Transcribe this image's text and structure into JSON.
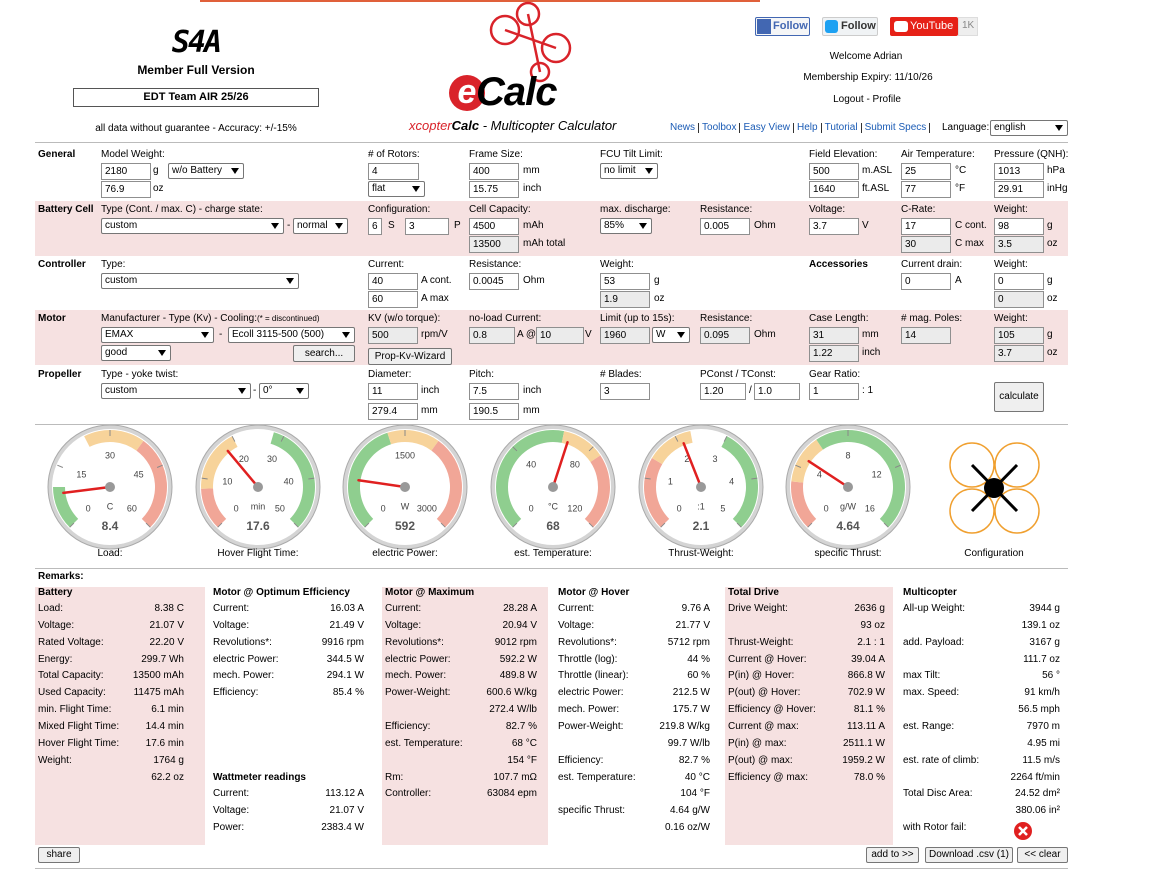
{
  "header": {
    "brand": "S4A",
    "membership": "Member Full Version",
    "team": "EDT Team AIR 25/26",
    "disclaimer": "all data without guarantee - Accuracy: +/-15%",
    "logo": [
      "e",
      "Calc"
    ],
    "subtitle": [
      "xcopter",
      "Calc",
      " - Multicopter Calculator"
    ],
    "social": [
      "Follow",
      "Follow",
      "YouTube",
      "1K"
    ],
    "welcome": "Welcome Adrian",
    "expiry": "Membership Expiry: 11/10/26",
    "account": "Logout - Profile",
    "nav": [
      "News",
      "Toolbox",
      "Easy View",
      "Help",
      "Tutorial",
      "Submit Specs"
    ],
    "language_label": "Language:",
    "language": "english"
  },
  "form": [
    {
      "title": "General",
      "labels": [
        "Model Weight:",
        "# of Rotors:",
        "Frame Size:",
        "FCU Tilt Limit:",
        "Field Elevation:",
        "Air Temperature:",
        "Pressure (QNH):"
      ],
      "inputs": [
        "2180",
        "76.9",
        "4",
        "400",
        "15.75",
        "500",
        "1640",
        "25",
        "77",
        "1013",
        "29.91"
      ],
      "readonly": [],
      "selects": [
        "w/o Battery",
        "flat",
        "no limit"
      ],
      "units": [
        "g",
        "oz",
        "mm",
        "inch",
        "m.ASL",
        "ft.ASL",
        "°C",
        "°F",
        "hPa",
        "inHg"
      ],
      "buttons": []
    },
    {
      "title": "Battery Cell",
      "labels": [
        "Type (Cont. / max. C) - charge state:",
        "Configuration:",
        "Cell Capacity:",
        "max. discharge:",
        "Resistance:",
        "Voltage:",
        "C-Rate:",
        "Weight:"
      ],
      "inputs": [
        "6",
        "3",
        "4500",
        "0.005",
        "3.7",
        "17",
        "98"
      ],
      "readonly": [
        "13500",
        "30",
        "3.5"
      ],
      "selects": [
        "custom",
        "normal",
        "85%"
      ],
      "units": [
        "-",
        "S",
        "P",
        "mAh",
        "mAh total",
        "Ohm",
        "V",
        "C cont.",
        "C max",
        "g",
        "oz"
      ],
      "buttons": []
    },
    {
      "title": "Controller",
      "subtitle": "Accessories",
      "labels": [
        "Type:",
        "Current:",
        "Resistance:",
        "Weight:",
        "Current drain:",
        "Weight:"
      ],
      "inputs": [
        "40",
        "60",
        "0.0045",
        "53",
        "0",
        "0"
      ],
      "readonly": [
        "1.9",
        "0"
      ],
      "selects": [
        "custom"
      ],
      "units": [
        "A cont.",
        "A max",
        "Ohm",
        "g",
        "oz",
        "A",
        "g",
        "oz"
      ],
      "buttons": []
    },
    {
      "title": "Motor",
      "labels": [
        "Manufacturer - Type (Kv) - Cooling:",
        "(* = discontinued)",
        "KV (w/o torque):",
        "no-load Current:",
        "Limit (up to 15s):",
        "Resistance:",
        "Case Length:",
        "# mag. Poles:",
        "Weight:"
      ],
      "inputs": [],
      "readonly": [
        "500",
        "0.8",
        "10",
        "1960",
        "0.095",
        "31",
        "1.22",
        "14",
        "105",
        "3.7"
      ],
      "selects": [
        "EMAX",
        "Ecoll 3115-500 (500)",
        "good",
        "W"
      ],
      "units": [
        "-",
        "rpm/V",
        "A @",
        "V",
        "Ohm",
        "mm",
        "inch",
        "g",
        "oz"
      ],
      "buttons": [
        "search...",
        "Prop-Kv-Wizard"
      ]
    },
    {
      "title": "Propeller",
      "labels": [
        "Type - yoke twist:",
        "Diameter:",
        "Pitch:",
        "# Blades:",
        "PConst / TConst:",
        "Gear Ratio:"
      ],
      "inputs": [
        "11",
        "279.4",
        "7.5",
        "190.5",
        "3",
        "1.20",
        "1.0",
        "1"
      ],
      "readonly": [],
      "selects": [
        "custom",
        "0°"
      ],
      "units": [
        "-",
        "inch",
        "mm",
        "inch",
        "mm",
        "/",
        ": 1"
      ],
      "buttons": [
        "calculate"
      ]
    }
  ],
  "gauges": [
    {
      "label": "Load:",
      "unit": "C",
      "min": 0,
      "max": 60,
      "ticks": [
        0,
        15,
        30,
        45,
        60
      ],
      "value": 8.4,
      "bands": [
        {
          "from": 0,
          "to": 10,
          "color": "#8fce8f"
        },
        {
          "from": 24,
          "to": 38,
          "color": "#f7d39a"
        },
        {
          "from": 38,
          "to": 60,
          "color": "#f1a697"
        }
      ]
    },
    {
      "label": "Hover Flight Time:",
      "unit": "min",
      "min": 0,
      "max": 50,
      "ticks": [
        0,
        10,
        20,
        30,
        40,
        50
      ],
      "value": 17.6,
      "bands": [
        {
          "from": 0,
          "to": 8,
          "color": "#f1a697"
        },
        {
          "from": 8,
          "to": 20,
          "color": "#f7d39a"
        },
        {
          "from": 28,
          "to": 50,
          "color": "#8fce8f"
        }
      ]
    },
    {
      "label": "electric Power:",
      "unit": "W",
      "min": 0,
      "max": 3000,
      "ticks": [
        0,
        1500,
        3000
      ],
      "value": 592,
      "bands": [
        {
          "from": 0,
          "to": 1300,
          "color": "#8fce8f"
        },
        {
          "from": 1300,
          "to": 1900,
          "color": "#f7d39a"
        },
        {
          "from": 1900,
          "to": 3000,
          "color": "#f1a697"
        }
      ]
    },
    {
      "label": "est. Temperature:",
      "unit": "°C",
      "min": 0,
      "max": 120,
      "ticks": [
        0,
        40,
        80,
        120
      ],
      "value": 68,
      "bands": [
        {
          "from": 0,
          "to": 65,
          "color": "#8fce8f"
        },
        {
          "from": 65,
          "to": 85,
          "color": "#f7d39a"
        },
        {
          "from": 85,
          "to": 120,
          "color": "#f1a697"
        }
      ]
    },
    {
      "label": "Thrust-Weight:",
      "unit": ":1",
      "min": 0,
      "max": 5,
      "ticks": [
        0,
        1,
        2,
        3,
        4,
        5
      ],
      "value": 2.1,
      "bands": [
        {
          "from": 0,
          "to": 1.4,
          "color": "#f1a697"
        },
        {
          "from": 1.4,
          "to": 2.3,
          "color": "#f7d39a"
        },
        {
          "from": 3,
          "to": 5,
          "color": "#8fce8f"
        }
      ]
    },
    {
      "label": "specific Thrust:",
      "unit": "g/W",
      "min": 0,
      "max": 16,
      "ticks": [
        0,
        4,
        8,
        12,
        16
      ],
      "value": 4.64,
      "bands": [
        {
          "from": 0,
          "to": 3,
          "color": "#f1a697"
        },
        {
          "from": 3,
          "to": 6,
          "color": "#f7d39a"
        },
        {
          "from": 6,
          "to": 16,
          "color": "#8fce8f"
        }
      ]
    }
  ],
  "configuration_label": "Configuration",
  "results": {
    "remarks": "Remarks:",
    "columns": [
      {
        "title": "Battery",
        "rows": [
          [
            "Load:",
            "8.38 C"
          ],
          [
            "Voltage:",
            "21.07 V"
          ],
          [
            "Rated Voltage:",
            "22.20 V"
          ],
          [
            "Energy:",
            "299.7 Wh"
          ],
          [
            "Total Capacity:",
            "13500 mAh"
          ],
          [
            "Used Capacity:",
            "11475 mAh"
          ],
          [
            "min. Flight Time:",
            "6.1 min"
          ],
          [
            "Mixed Flight Time:",
            "14.4 min"
          ],
          [
            "Hover Flight Time:",
            "17.6 min"
          ],
          [
            "Weight:",
            "1764 g"
          ],
          [
            null,
            "62.2 oz"
          ]
        ]
      },
      {
        "title": "Motor @ Optimum Efficiency",
        "rows": [
          [
            "Current:",
            "16.03 A"
          ],
          [
            "Voltage:",
            "21.49 V"
          ],
          [
            "Revolutions*:",
            "9916 rpm"
          ],
          [
            "electric Power:",
            "344.5 W"
          ],
          [
            "mech. Power:",
            "294.1 W"
          ],
          [
            "Efficiency:",
            "85.4 %"
          ]
        ],
        "subtitle": "Wattmeter readings",
        "subrows": [
          [
            "Current:",
            "113.12 A"
          ],
          [
            "Voltage:",
            "21.07 V"
          ],
          [
            "Power:",
            "2383.4 W"
          ]
        ]
      },
      {
        "title": "Motor @ Maximum",
        "rows": [
          [
            "Current:",
            "28.28 A"
          ],
          [
            "Voltage:",
            "20.94 V"
          ],
          [
            "Revolutions*:",
            "9012 rpm"
          ],
          [
            "electric Power:",
            "592.2 W"
          ],
          [
            "mech. Power:",
            "489.8 W"
          ],
          [
            "Power-Weight:",
            "600.6 W/kg"
          ],
          [
            null,
            "272.4 W/lb"
          ],
          [
            "Efficiency:",
            "82.7 %"
          ],
          [
            "est. Temperature:",
            "68 °C"
          ],
          [
            null,
            "154 °F"
          ],
          [
            "Rm:",
            "107.7 mΩ"
          ],
          [
            "Controller:",
            "63084 epm"
          ]
        ]
      },
      {
        "title": "Motor @ Hover",
        "rows": [
          [
            "Current:",
            "9.76 A"
          ],
          [
            "Voltage:",
            "21.77 V"
          ],
          [
            "Revolutions*:",
            "5712 rpm"
          ],
          [
            "Throttle (log):",
            "44 %"
          ],
          [
            "Throttle (linear):",
            "60 %"
          ],
          [
            "electric Power:",
            "212.5 W"
          ],
          [
            "mech. Power:",
            "175.7 W"
          ],
          [
            "Power-Weight:",
            "219.8 W/kg"
          ],
          [
            null,
            "99.7 W/lb"
          ],
          [
            "Efficiency:",
            "82.7 %"
          ],
          [
            "est. Temperature:",
            "40 °C"
          ],
          [
            null,
            "104 °F"
          ],
          [
            "specific Thrust:",
            "4.64 g/W"
          ],
          [
            null,
            "0.16 oz/W"
          ]
        ]
      },
      {
        "title": "Total Drive",
        "rows": [
          [
            "Drive Weight:",
            "2636 g"
          ],
          [
            null,
            "93 oz"
          ],
          [
            "Thrust-Weight:",
            "2.1 : 1"
          ],
          [
            "Current @ Hover:",
            "39.04 A"
          ],
          [
            "P(in) @ Hover:",
            "866.8 W"
          ],
          [
            "P(out) @ Hover:",
            "702.9 W"
          ],
          [
            "Efficiency @ Hover:",
            "81.1 %"
          ],
          [
            "Current @ max:",
            "113.11 A"
          ],
          [
            "P(in) @ max:",
            "2511.1 W"
          ],
          [
            "P(out) @ max:",
            "1959.2 W"
          ],
          [
            "Efficiency @ max:",
            "78.0 %"
          ]
        ]
      },
      {
        "title": "Multicopter",
        "rows": [
          [
            "All-up Weight:",
            "3944 g"
          ],
          [
            null,
            "139.1 oz"
          ],
          [
            "add. Payload:",
            "3167 g"
          ],
          [
            null,
            "111.7 oz"
          ],
          [
            "max Tilt:",
            "56 °"
          ],
          [
            "max. Speed:",
            "91 km/h"
          ],
          [
            null,
            "56.5 mph"
          ],
          [
            "est. Range:",
            "7970 m"
          ],
          [
            null,
            "4.95 mi"
          ],
          [
            "est. rate of climb:",
            "11.5 m/s"
          ],
          [
            null,
            "2264 ft/min"
          ],
          [
            "Total Disc Area:",
            "24.52 dm²"
          ],
          [
            null,
            "380.06 in²"
          ],
          [
            "with Rotor fail:",
            null
          ]
        ]
      }
    ]
  },
  "footer_buttons": [
    "share",
    "add to >>",
    "Download .csv (1)",
    "<< clear"
  ]
}
